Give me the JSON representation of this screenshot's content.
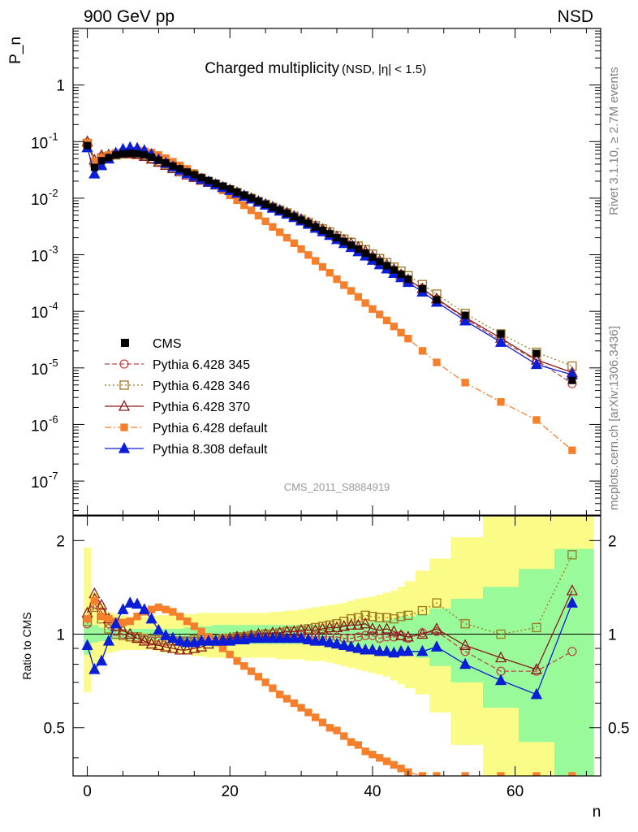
{
  "header": {
    "left": "900 GeV pp",
    "right": "NSD",
    "side_top": "Rivet 3.1.10, ≥ 2.7M events",
    "side_bottom": "mcplots.cern.ch [arXiv:1306.3436]"
  },
  "chart_data": {
    "type": "line",
    "title": "Charged multiplicity",
    "subtitle": "(NSD, |η| < 1.5)",
    "analysis_tag": "CMS_2011_S8884919",
    "xlabel": "n",
    "ylabel_top": "P_n",
    "ylabel_bottom": "Ratio to CMS",
    "xlim": [
      -2,
      72
    ],
    "top_panel": {
      "yscale": "log",
      "ylim": [
        2.5e-08,
        10
      ],
      "yticks": [
        "10^-7",
        "10^-6",
        "10^-5",
        "10^-4",
        "10^-3",
        "10^-2",
        "10^-1",
        "1"
      ]
    },
    "ratio_panel": {
      "yscale": "log",
      "ylim": [
        0.35,
        2.4
      ],
      "yticks": [
        "0.5",
        "1",
        "2"
      ]
    },
    "xticks": [
      "0",
      "20",
      "40",
      "60"
    ],
    "legend_position": "lower-left",
    "legend": [
      "CMS",
      "Pythia 6.428 345",
      "Pythia 6.428 346",
      "Pythia 6.428 370",
      "Pythia 6.428 default",
      "Pythia 8.308 default"
    ],
    "colors": {
      "CMS": "#000000",
      "Pythia 6.428 345": "#c04848",
      "Pythia 6.428 346": "#a07820",
      "Pythia 6.428 370": "#8b1a1a",
      "Pythia 6.428 default": "#f57f2a",
      "Pythia 8.308 default": "#0a1ed8",
      "band_inner": "#98fa98",
      "band_outer": "#fbfb88"
    },
    "data_points": {
      "x": [
        0,
        1,
        2,
        3,
        4,
        5,
        6,
        7,
        8,
        9,
        10,
        11,
        12,
        13,
        14,
        15,
        16,
        17,
        18,
        19,
        20,
        21,
        22,
        23,
        24,
        25,
        26,
        27,
        28,
        29,
        30,
        31,
        32,
        33,
        34,
        35,
        36,
        37,
        38,
        39,
        40,
        41,
        42,
        43,
        44,
        45,
        47,
        49,
        53,
        58,
        63,
        68
      ],
      "y": [
        0.085,
        0.035,
        0.046,
        0.052,
        0.058,
        0.061,
        0.062,
        0.061,
        0.058,
        0.053,
        0.047,
        0.042,
        0.037,
        0.033,
        0.029,
        0.026,
        0.023,
        0.0205,
        0.0183,
        0.0163,
        0.0145,
        0.0128,
        0.0113,
        0.01,
        0.0088,
        0.0078,
        0.0069,
        0.0061,
        0.0054,
        0.0047,
        0.0041,
        0.0036,
        0.0031,
        0.0027,
        0.00235,
        0.002,
        0.00172,
        0.00148,
        0.00126,
        0.00107,
        0.0009,
        0.00076,
        0.00064,
        0.00054,
        0.00045,
        0.00037,
        0.00025,
        0.00016,
        8.5e-05,
        4e-05,
        1.8e-05,
        6e-06
      ]
    },
    "uncertainty_band": {
      "x_edges": [
        -0.5,
        0.5,
        1.5,
        2.5,
        3.5,
        4.5,
        5.5,
        6.5,
        7.5,
        8.5,
        9.5,
        10.5,
        11.5,
        12.5,
        13.5,
        14.5,
        15.5,
        16.5,
        17.5,
        18.5,
        19.5,
        20.5,
        21.5,
        22.5,
        23.5,
        24.5,
        25.5,
        26.5,
        27.5,
        28.5,
        29.5,
        30.5,
        31.5,
        32.5,
        33.5,
        34.5,
        35.5,
        36.5,
        37.5,
        38.5,
        39.5,
        40.5,
        41.5,
        42.5,
        43.5,
        44.5,
        46,
        48,
        51,
        55.5,
        60.5,
        65.5,
        71
      ],
      "inner_low": [
        0.86,
        0.94,
        0.95,
        0.96,
        0.96,
        0.96,
        0.96,
        0.96,
        0.96,
        0.96,
        0.96,
        0.96,
        0.96,
        0.96,
        0.95,
        0.95,
        0.94,
        0.94,
        0.93,
        0.93,
        0.93,
        0.93,
        0.93,
        0.93,
        0.93,
        0.93,
        0.93,
        0.93,
        0.93,
        0.93,
        0.93,
        0.93,
        0.93,
        0.93,
        0.93,
        0.93,
        0.92,
        0.92,
        0.91,
        0.91,
        0.9,
        0.9,
        0.89,
        0.88,
        0.86,
        0.86,
        0.84,
        0.79,
        0.7,
        0.58,
        0.45,
        0.35
      ],
      "inner_high": [
        1.14,
        1.07,
        1.05,
        1.04,
        1.04,
        1.04,
        1.04,
        1.04,
        1.04,
        1.04,
        1.04,
        1.04,
        1.04,
        1.04,
        1.05,
        1.05,
        1.06,
        1.06,
        1.07,
        1.07,
        1.07,
        1.07,
        1.07,
        1.07,
        1.07,
        1.07,
        1.07,
        1.07,
        1.07,
        1.07,
        1.07,
        1.07,
        1.07,
        1.07,
        1.07,
        1.07,
        1.08,
        1.08,
        1.09,
        1.09,
        1.1,
        1.1,
        1.11,
        1.12,
        1.14,
        1.14,
        1.16,
        1.21,
        1.3,
        1.42,
        1.62,
        1.88
      ],
      "outer_low": [
        0.65,
        0.8,
        0.84,
        0.87,
        0.88,
        0.89,
        0.89,
        0.89,
        0.89,
        0.89,
        0.88,
        0.87,
        0.87,
        0.86,
        0.86,
        0.85,
        0.85,
        0.84,
        0.84,
        0.84,
        0.84,
        0.84,
        0.84,
        0.84,
        0.84,
        0.84,
        0.84,
        0.83,
        0.83,
        0.83,
        0.83,
        0.82,
        0.82,
        0.82,
        0.81,
        0.8,
        0.79,
        0.78,
        0.77,
        0.76,
        0.75,
        0.74,
        0.73,
        0.71,
        0.69,
        0.67,
        0.64,
        0.56,
        0.44,
        0.35,
        0.35,
        0.35
      ],
      "outer_high": [
        1.9,
        1.36,
        1.25,
        1.18,
        1.16,
        1.15,
        1.14,
        1.14,
        1.14,
        1.14,
        1.15,
        1.15,
        1.15,
        1.16,
        1.16,
        1.16,
        1.17,
        1.17,
        1.17,
        1.17,
        1.17,
        1.17,
        1.17,
        1.17,
        1.17,
        1.17,
        1.18,
        1.18,
        1.19,
        1.19,
        1.2,
        1.21,
        1.22,
        1.23,
        1.24,
        1.25,
        1.26,
        1.28,
        1.3,
        1.31,
        1.32,
        1.34,
        1.36,
        1.38,
        1.42,
        1.48,
        1.6,
        1.75,
        2.05,
        2.4,
        2.4,
        2.4
      ]
    },
    "series": [
      {
        "name": "Pythia 6.428 345",
        "x": [
          0,
          1,
          2,
          3,
          4,
          5,
          6,
          7,
          8,
          9,
          10,
          11,
          12,
          13,
          14,
          15,
          16,
          17,
          18,
          19,
          20,
          21,
          22,
          23,
          24,
          25,
          26,
          27,
          28,
          29,
          30,
          31,
          32,
          33,
          34,
          35,
          36,
          37,
          38,
          39,
          40,
          41,
          42,
          43,
          44,
          45,
          47,
          49,
          53,
          58,
          63,
          68
        ],
        "ratio": [
          1.08,
          1.25,
          1.18,
          1.08,
          1.02,
          1.0,
          0.98,
          0.97,
          0.96,
          0.95,
          0.95,
          0.95,
          0.95,
          0.95,
          0.95,
          0.95,
          0.95,
          0.95,
          0.95,
          0.96,
          0.96,
          0.96,
          0.97,
          0.97,
          0.98,
          0.98,
          0.98,
          0.98,
          0.99,
          0.99,
          0.99,
          0.98,
          0.98,
          0.98,
          0.98,
          0.98,
          0.97,
          0.97,
          0.98,
          0.99,
          0.99,
          0.97,
          0.98,
          0.98,
          0.99,
          0.97,
          1.01,
          1.02,
          0.88,
          0.76,
          0.76,
          0.88
        ]
      },
      {
        "name": "Pythia 6.428 346",
        "x": [
          0,
          1,
          2,
          3,
          4,
          5,
          6,
          7,
          8,
          9,
          10,
          11,
          12,
          13,
          14,
          15,
          16,
          17,
          18,
          19,
          20,
          21,
          22,
          23,
          24,
          25,
          26,
          27,
          28,
          29,
          30,
          31,
          32,
          33,
          34,
          35,
          36,
          37,
          38,
          39,
          40,
          41,
          42,
          43,
          44,
          45,
          47,
          49,
          53,
          58,
          63,
          68
        ],
        "ratio": [
          1.1,
          1.22,
          1.12,
          1.04,
          1.0,
          0.99,
          0.98,
          0.98,
          0.97,
          0.96,
          0.96,
          0.96,
          0.95,
          0.95,
          0.95,
          0.96,
          0.96,
          0.96,
          0.96,
          0.97,
          0.97,
          0.98,
          0.98,
          0.99,
          0.99,
          1.0,
          1.0,
          1.01,
          1.02,
          1.02,
          1.03,
          1.04,
          1.05,
          1.06,
          1.07,
          1.08,
          1.1,
          1.12,
          1.13,
          1.15,
          1.14,
          1.13,
          1.13,
          1.12,
          1.14,
          1.15,
          1.19,
          1.26,
          1.08,
          1.0,
          1.05,
          1.8
        ]
      },
      {
        "name": "Pythia 6.428 370",
        "x": [
          0,
          1,
          2,
          3,
          4,
          5,
          6,
          7,
          8,
          9,
          10,
          11,
          12,
          13,
          14,
          15,
          16,
          17,
          18,
          19,
          20,
          21,
          22,
          23,
          24,
          25,
          26,
          27,
          28,
          29,
          30,
          31,
          32,
          33,
          34,
          35,
          36,
          37,
          38,
          39,
          40,
          41,
          42,
          43,
          44,
          45,
          47,
          49,
          53,
          58,
          63,
          68
        ],
        "ratio": [
          1.17,
          1.35,
          1.24,
          1.12,
          1.06,
          1.03,
          1.0,
          0.97,
          0.95,
          0.93,
          0.92,
          0.91,
          0.9,
          0.89,
          0.89,
          0.9,
          0.91,
          0.93,
          0.95,
          0.96,
          0.97,
          0.98,
          0.98,
          0.99,
          1.0,
          1.0,
          1.01,
          1.01,
          1.02,
          1.02,
          1.03,
          1.03,
          1.03,
          1.04,
          1.05,
          1.05,
          1.06,
          1.07,
          1.07,
          1.08,
          1.04,
          1.03,
          1.04,
          1.02,
          0.99,
          0.98,
          1.0,
          1.04,
          0.92,
          0.84,
          0.77,
          1.38
        ]
      },
      {
        "name": "Pythia 6.428 default",
        "x": [
          0,
          1,
          2,
          3,
          4,
          5,
          6,
          7,
          8,
          9,
          10,
          11,
          12,
          13,
          14,
          15,
          16,
          17,
          18,
          19,
          20,
          21,
          22,
          23,
          24,
          25,
          26,
          27,
          28,
          29,
          30,
          31,
          32,
          33,
          34,
          35,
          36,
          37,
          38,
          39,
          40,
          41,
          42,
          43,
          44,
          45,
          47,
          49,
          53,
          58,
          63,
          68
        ],
        "y": [
          0.095,
          0.045,
          0.052,
          0.058,
          0.063,
          0.066,
          0.068,
          0.07,
          0.068,
          0.064,
          0.058,
          0.051,
          0.044,
          0.038,
          0.033,
          0.028,
          0.0236,
          0.0197,
          0.0165,
          0.0137,
          0.0112,
          0.0092,
          0.0075,
          0.0061,
          0.0049,
          0.0039,
          0.0031,
          0.0025,
          0.002,
          0.0016,
          0.00126,
          0.00099,
          0.00078,
          0.00061,
          0.00048,
          0.00037,
          0.00029,
          0.00023,
          0.00018,
          0.00014,
          0.00011,
          8.8e-05,
          6.9e-05,
          5.4e-05,
          4.2e-05,
          3.3e-05,
          2e-05,
          1.25e-05,
          5.5e-06,
          2.5e-06,
          1.2e-06,
          3.5e-07
        ],
        "ratio": [
          1.12,
          1.28,
          1.14,
          1.12,
          1.1,
          1.09,
          1.1,
          1.14,
          1.18,
          1.2,
          1.22,
          1.2,
          1.18,
          1.14,
          1.1,
          1.06,
          1.02,
          0.98,
          0.94,
          0.9,
          0.86,
          0.82,
          0.79,
          0.76,
          0.73,
          0.7,
          0.67,
          0.64,
          0.62,
          0.6,
          0.58,
          0.56,
          0.54,
          0.52,
          0.5,
          0.49,
          0.47,
          0.45,
          0.44,
          0.42,
          0.41,
          0.4,
          0.39,
          0.38,
          0.37,
          0.36,
          0.35,
          0.35,
          0.35,
          0.35,
          0.35,
          0.35
        ]
      },
      {
        "name": "Pythia 8.308 default",
        "x": [
          0,
          1,
          2,
          3,
          4,
          5,
          6,
          7,
          8,
          9,
          10,
          11,
          12,
          13,
          14,
          15,
          16,
          17,
          18,
          19,
          20,
          21,
          22,
          23,
          24,
          25,
          26,
          27,
          28,
          29,
          30,
          31,
          32,
          33,
          34,
          35,
          36,
          37,
          38,
          39,
          40,
          41,
          42,
          43,
          44,
          45,
          47,
          49,
          53,
          58,
          63,
          68
        ],
        "ratio": [
          0.92,
          0.77,
          0.82,
          0.95,
          1.08,
          1.2,
          1.26,
          1.25,
          1.2,
          1.12,
          1.03,
          0.99,
          0.97,
          0.95,
          0.94,
          0.94,
          0.95,
          0.95,
          0.95,
          0.95,
          0.95,
          0.96,
          0.96,
          0.97,
          0.97,
          0.97,
          0.97,
          0.97,
          0.97,
          0.97,
          0.97,
          0.96,
          0.95,
          0.95,
          0.94,
          0.93,
          0.92,
          0.91,
          0.9,
          0.89,
          0.89,
          0.88,
          0.88,
          0.87,
          0.88,
          0.88,
          0.88,
          0.91,
          0.8,
          0.71,
          0.64,
          1.26
        ]
      }
    ]
  }
}
